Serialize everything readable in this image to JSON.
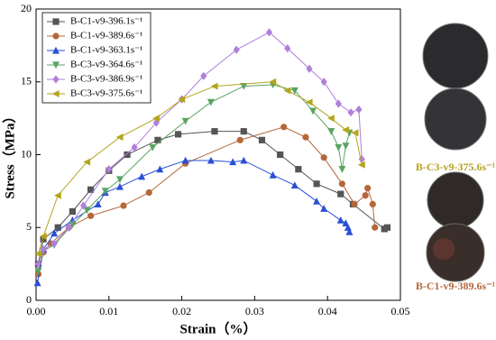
{
  "chart_data": {
    "type": "line",
    "x_label": "Strain（%）",
    "y_label": "Stress（MPa）",
    "xlim": [
      0,
      0.05
    ],
    "xticks": [
      {
        "value": 0,
        "label": "0.00"
      },
      0.01,
      0.02,
      0.03,
      0.04,
      0.05
    ],
    "ylim": [
      0,
      20
    ],
    "yticks": [
      0,
      5,
      10,
      15,
      20
    ],
    "legend": "upper left",
    "series": [
      {
        "name": "B-C1-v9-396.1s⁻¹",
        "color": "#555555",
        "marker": "square",
        "x": [
          0.0003,
          0.001,
          0.003,
          0.005,
          0.0075,
          0.01,
          0.0125,
          0.0167,
          0.0195,
          0.0245,
          0.0285,
          0.031,
          0.0335,
          0.036,
          0.0385,
          0.0418,
          0.0435,
          0.0478,
          0.0482
        ],
        "values": [
          2.5,
          4.2,
          5.0,
          6.1,
          7.6,
          8.9,
          10.0,
          11.0,
          11.4,
          11.6,
          11.6,
          11.0,
          10.0,
          9.0,
          8.0,
          7.3,
          6.6,
          4.9,
          5.0
        ]
      },
      {
        "name": "B-C1-v9-389.6s⁻¹",
        "color": "#b5673a",
        "marker": "circle",
        "x": [
          0.0003,
          0.001,
          0.002,
          0.0045,
          0.0075,
          0.012,
          0.0155,
          0.0205,
          0.028,
          0.034,
          0.037,
          0.0395,
          0.042,
          0.0437,
          0.0452,
          0.0455,
          0.0462,
          0.0465
        ],
        "values": [
          1.8,
          3.3,
          3.9,
          5.0,
          5.8,
          6.5,
          7.4,
          9.4,
          11.0,
          11.9,
          11.2,
          9.8,
          8.0,
          6.6,
          7.2,
          7.7,
          6.6,
          5.0
        ]
      },
      {
        "name": "B-C1-v9-363.1s⁻¹",
        "color": "#2a4fd6",
        "marker": "triangle",
        "x": [
          0.0002,
          0.001,
          0.0025,
          0.005,
          0.0085,
          0.0095,
          0.0115,
          0.0145,
          0.017,
          0.0205,
          0.024,
          0.027,
          0.0285,
          0.0325,
          0.0355,
          0.0385,
          0.0395,
          0.0418,
          0.0425,
          0.0428,
          0.043
        ],
        "values": [
          1.2,
          3.5,
          4.6,
          5.5,
          6.6,
          7.4,
          7.8,
          8.5,
          9.0,
          9.6,
          9.6,
          9.5,
          9.6,
          8.6,
          7.9,
          6.8,
          6.3,
          5.5,
          5.3,
          5.0,
          4.7
        ]
      },
      {
        "name": "B-C3-v9-364.6s⁻¹",
        "color": "#5aa462",
        "marker": "triangle-down",
        "x": [
          0.0003,
          0.001,
          0.0025,
          0.005,
          0.007,
          0.0095,
          0.0115,
          0.016,
          0.0205,
          0.024,
          0.0285,
          0.0325,
          0.0355,
          0.038,
          0.0405,
          0.0415,
          0.042,
          0.0425,
          0.043
        ],
        "values": [
          2.0,
          3.4,
          3.8,
          5.2,
          6.2,
          7.5,
          8.3,
          10.5,
          12.3,
          13.6,
          14.7,
          14.8,
          14.4,
          13.0,
          11.6,
          10.5,
          9.0,
          10.6,
          11.5
        ]
      },
      {
        "name": "B-C3-v9-386.9s⁻¹",
        "color": "#b07fdc",
        "marker": "diamond",
        "x": [
          0.0003,
          0.001,
          0.0025,
          0.0045,
          0.0065,
          0.01,
          0.0135,
          0.0165,
          0.02,
          0.023,
          0.0275,
          0.032,
          0.0345,
          0.0375,
          0.0395,
          0.0415,
          0.0432,
          0.0443,
          0.0447
        ],
        "values": [
          2.5,
          3.5,
          3.9,
          5.0,
          6.5,
          9.0,
          10.5,
          12.2,
          13.8,
          15.4,
          17.2,
          18.4,
          17.3,
          15.9,
          15.0,
          13.5,
          12.9,
          13.1,
          9.7
        ]
      },
      {
        "name": "B-C3-v9-375.6s⁻¹",
        "color": "#b3a51d",
        "marker": "triangle-left",
        "x": [
          0.0003,
          0.001,
          0.003,
          0.007,
          0.0115,
          0.0165,
          0.02,
          0.0245,
          0.0325,
          0.0345,
          0.0375,
          0.0405,
          0.0425,
          0.0438,
          0.0447
        ],
        "values": [
          3.2,
          4.4,
          7.2,
          9.5,
          11.2,
          12.5,
          13.8,
          14.7,
          15.0,
          14.4,
          13.6,
          12.5,
          11.7,
          11.5,
          9.3
        ]
      }
    ]
  },
  "photos": [
    {
      "label": "B-C3-v9-375.6s⁻¹",
      "color": "#b8a21f"
    },
    {
      "label": "B-C1-v9-389.6s⁻¹",
      "color": "#b5673a"
    }
  ]
}
